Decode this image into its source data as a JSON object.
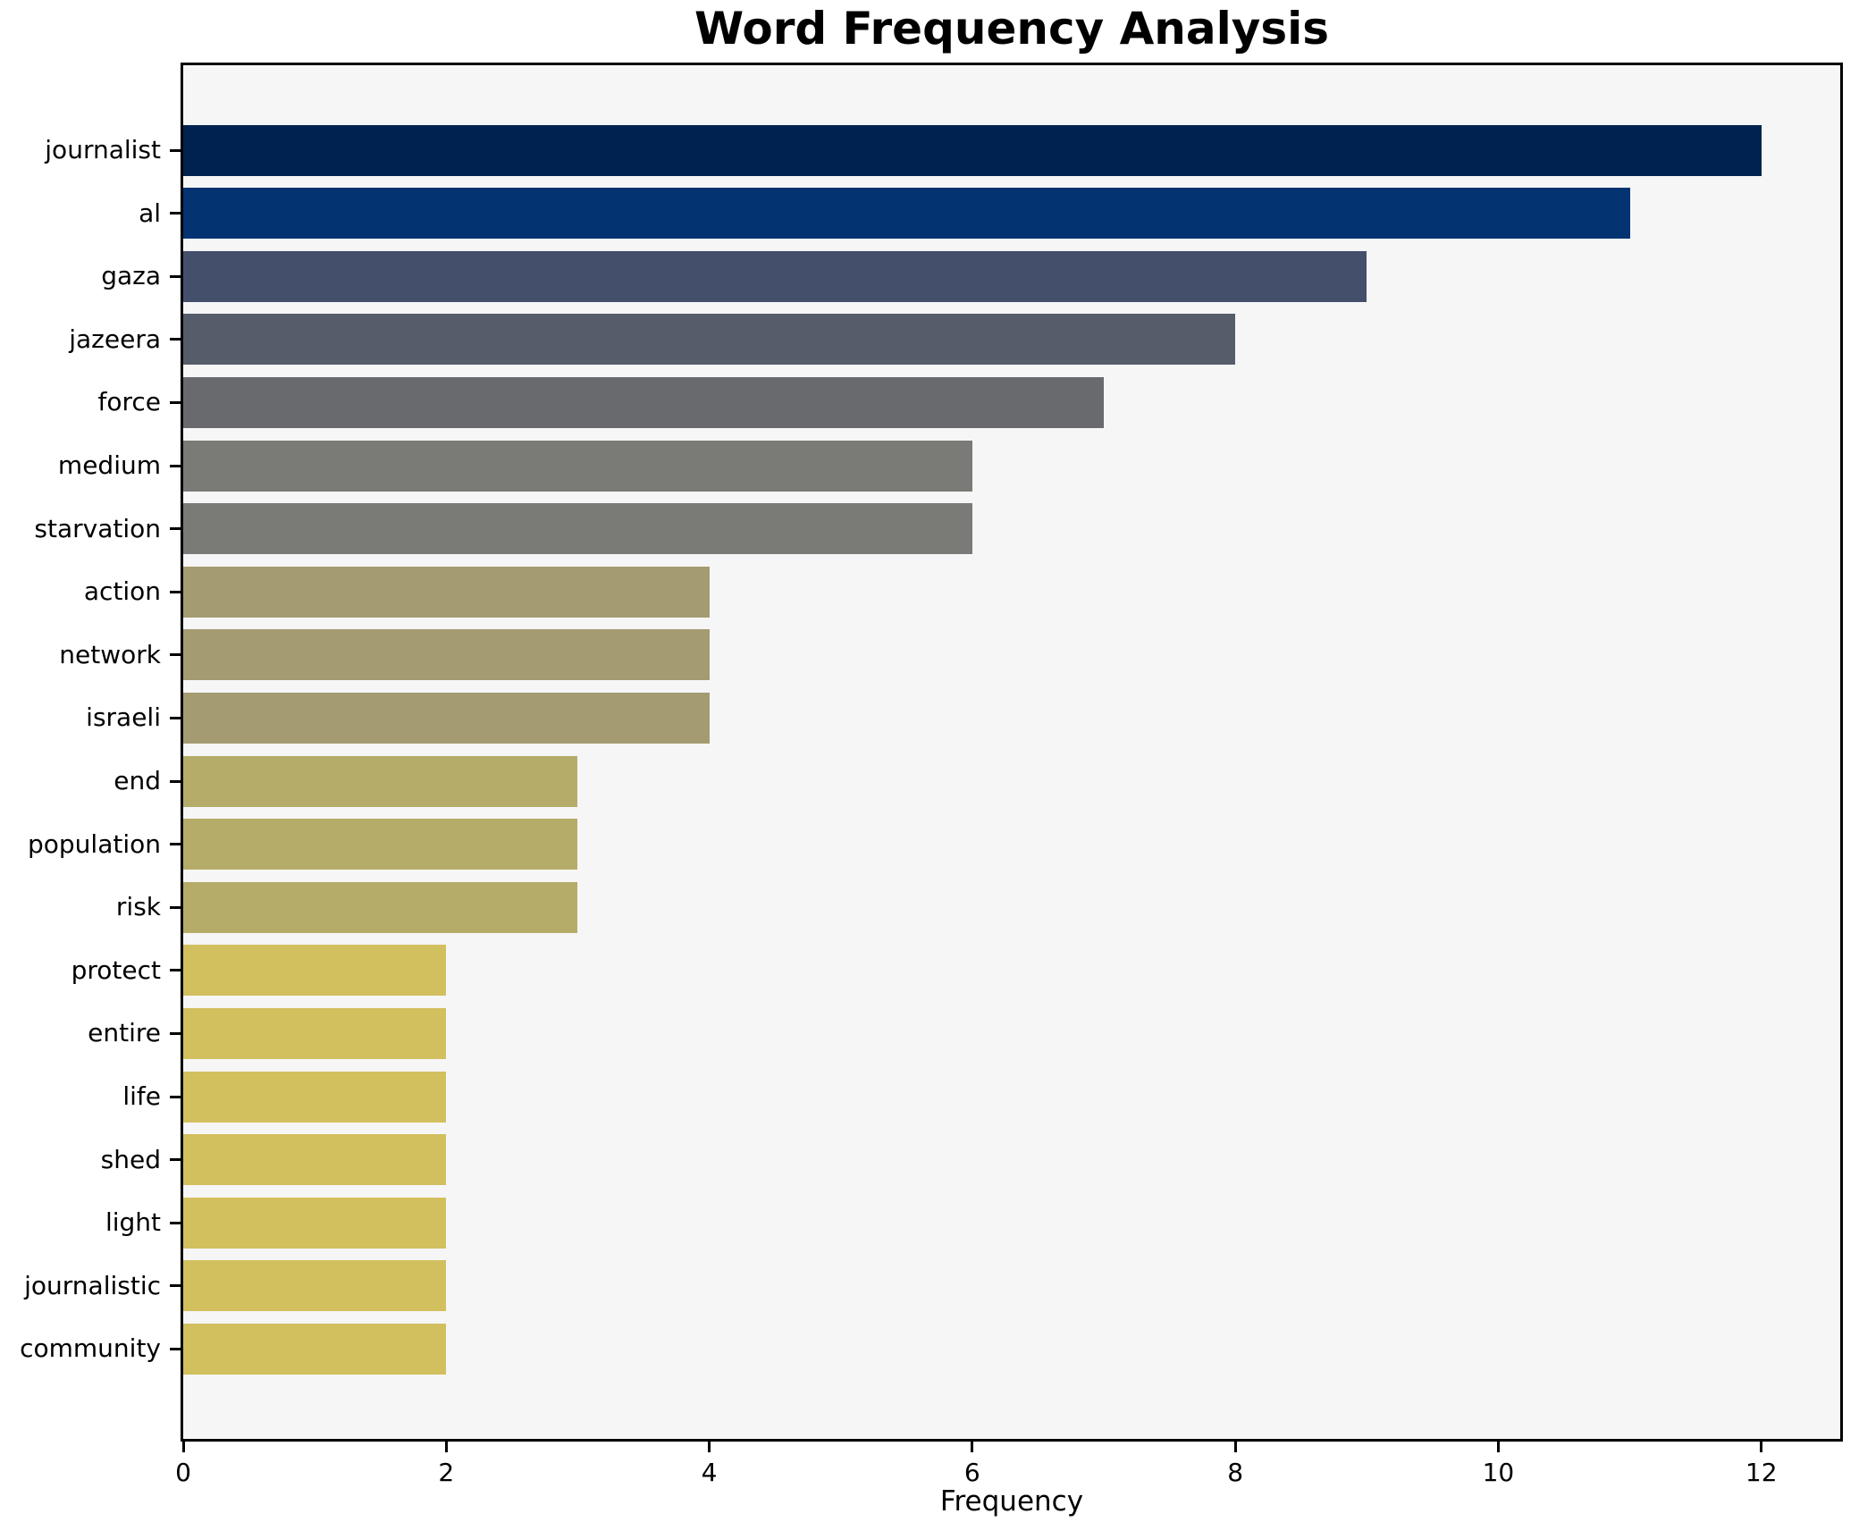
{
  "chart_data": {
    "type": "bar",
    "orientation": "horizontal",
    "title": "Word Frequency Analysis",
    "xlabel": "Frequency",
    "ylabel": "",
    "categories": [
      "journalist",
      "al",
      "gaza",
      "jazeera",
      "force",
      "medium",
      "starvation",
      "action",
      "network",
      "israeli",
      "end",
      "population",
      "risk",
      "protect",
      "entire",
      "life",
      "shed",
      "light",
      "journalistic",
      "community"
    ],
    "values": [
      12,
      11,
      9,
      8,
      7,
      6,
      6,
      4,
      4,
      4,
      3,
      3,
      3,
      2,
      2,
      2,
      2,
      2,
      2,
      2
    ],
    "bar_colors": [
      "#002250",
      "#033370",
      "#44506b",
      "#555c6a",
      "#696a6e",
      "#7a7a76",
      "#7a7a76",
      "#a49b72",
      "#a49b72",
      "#a49b72",
      "#b6ac69",
      "#b6ac69",
      "#b6ac69",
      "#d2bf5e",
      "#d2bf5e",
      "#d2bf5e",
      "#d2bf5e",
      "#d2bf5e",
      "#d2bf5e",
      "#d2bf5e"
    ],
    "x_ticks": [
      0,
      2,
      4,
      6,
      8,
      10,
      12
    ],
    "xlim": [
      0,
      12.6
    ],
    "grid": false,
    "legend": null,
    "colormap": "cividis",
    "plot_bg": "#f6f6f7",
    "figure_bg": "#ffffff"
  }
}
